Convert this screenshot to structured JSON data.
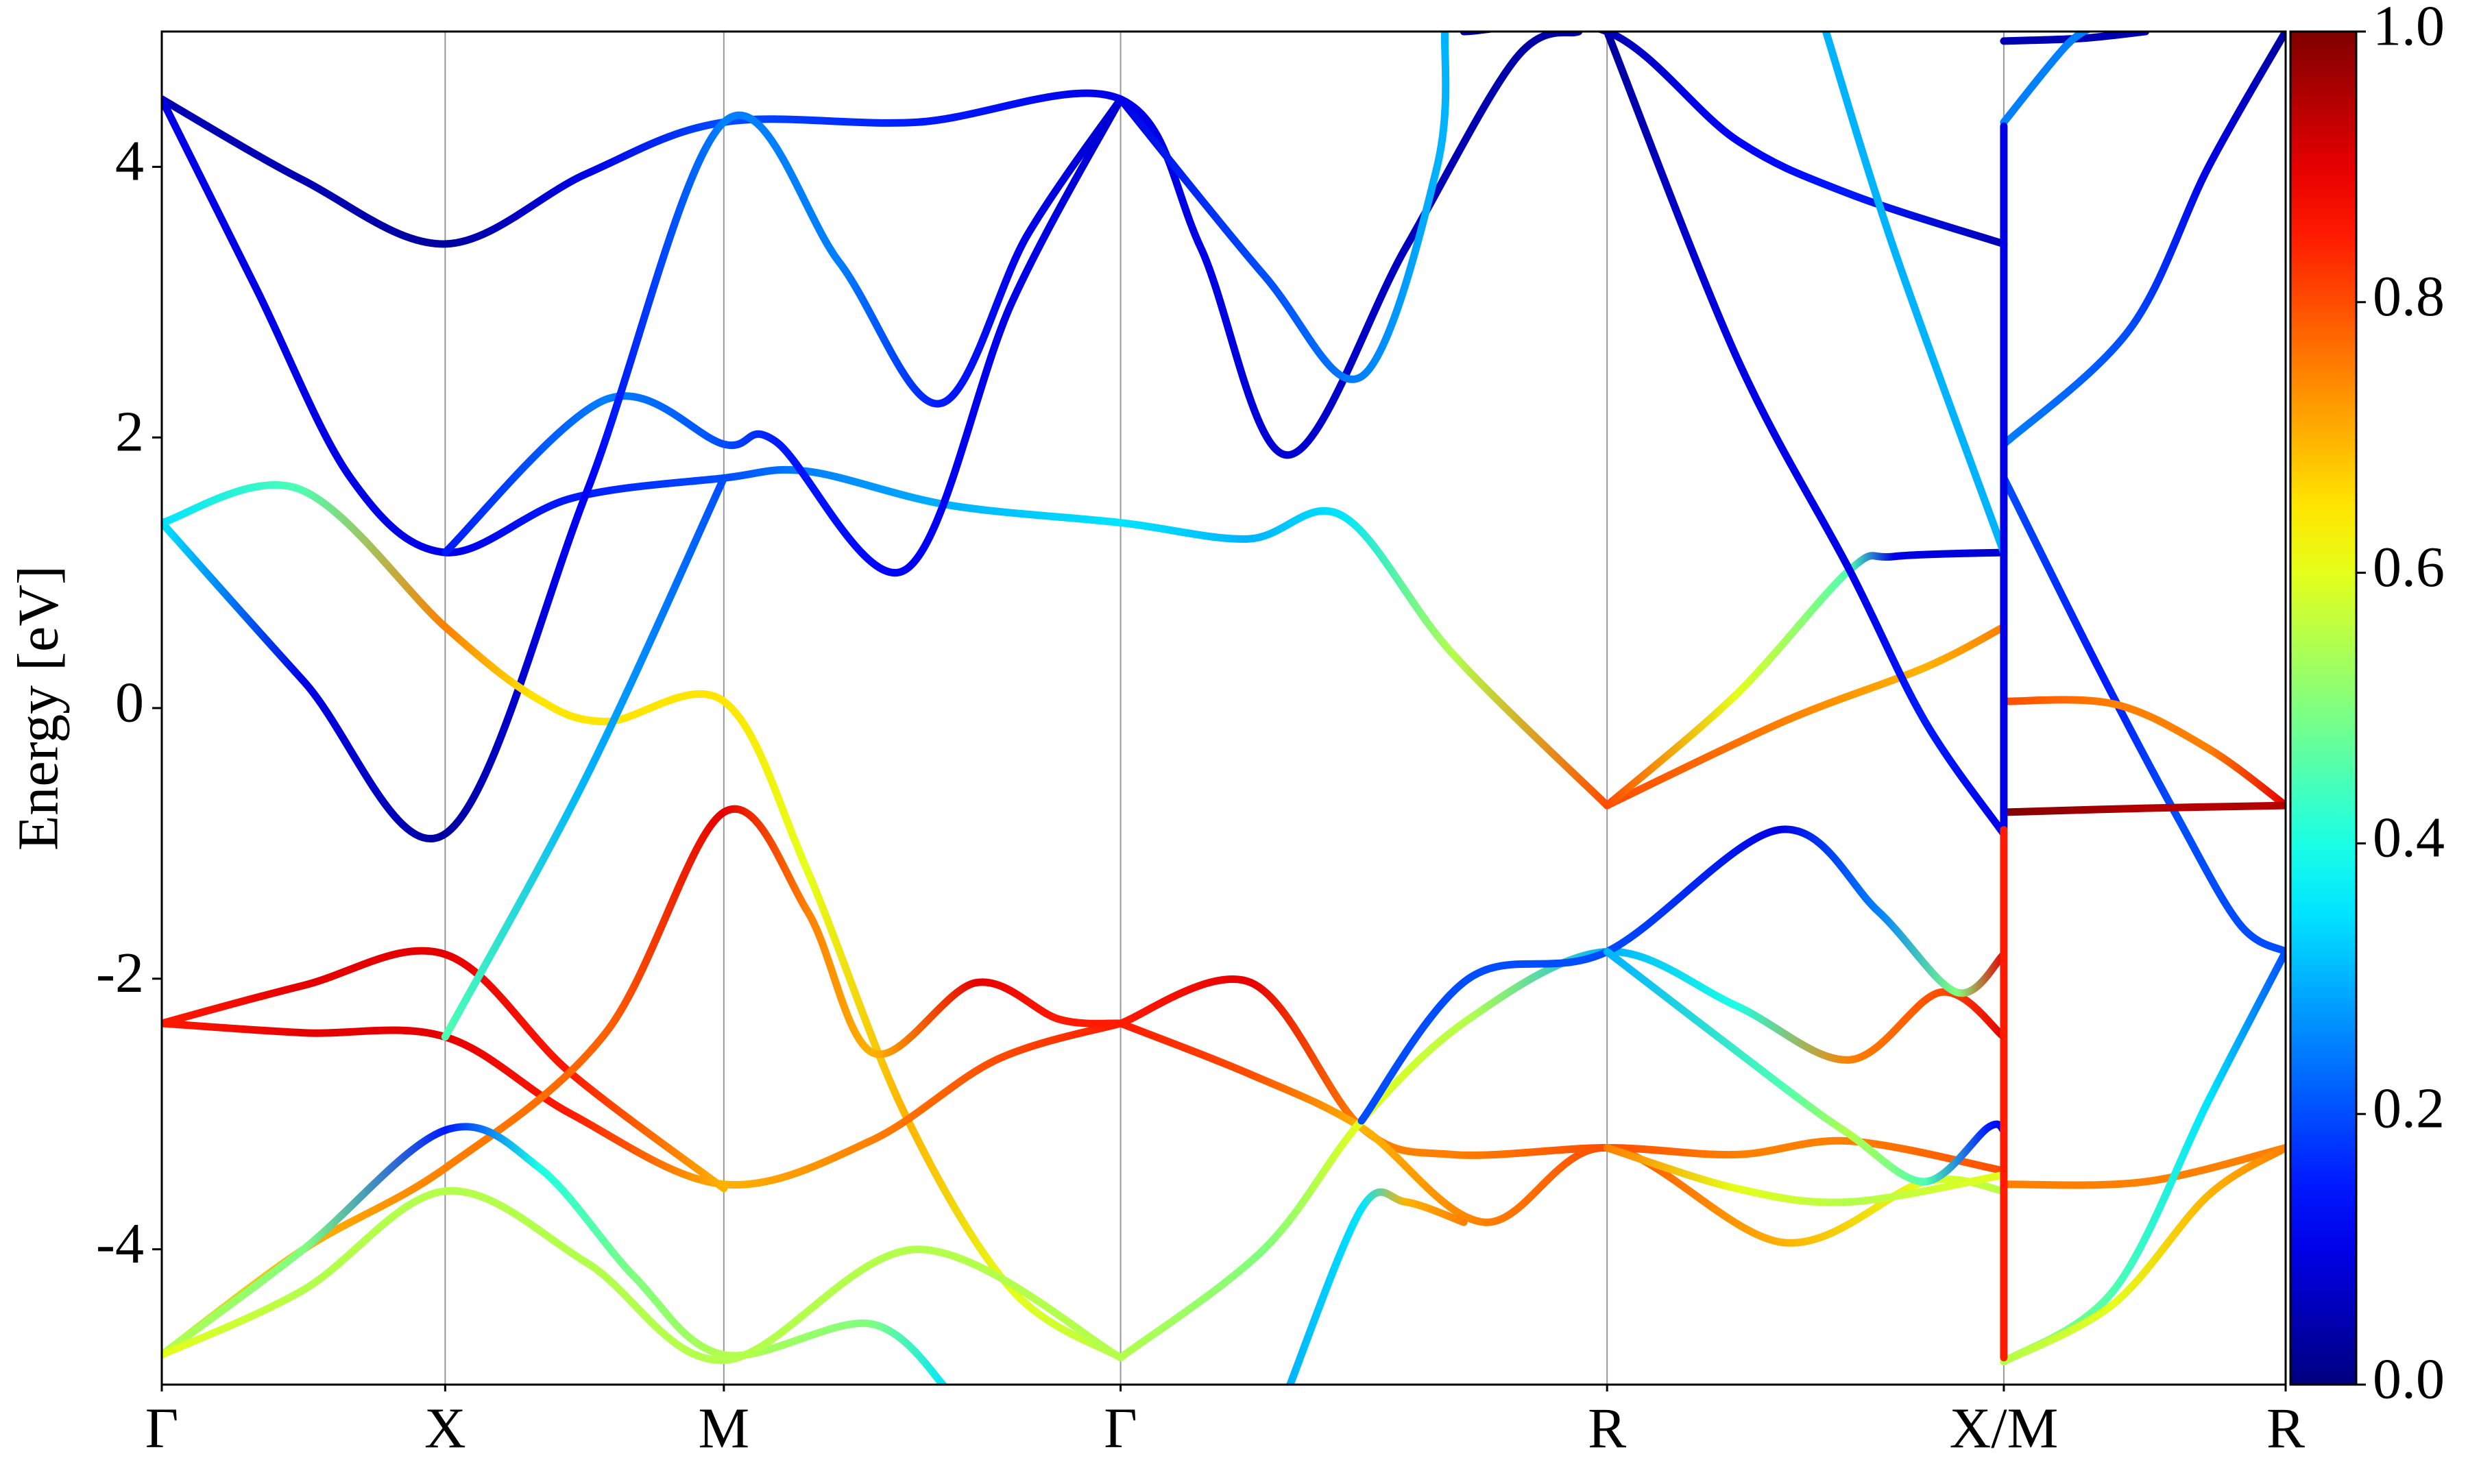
{
  "chart_data": {
    "type": "band_structure",
    "ylabel": "Energy [eV]",
    "xlim": [
      0,
      13.49
    ],
    "ylim": [
      -5,
      5
    ],
    "xticks": [
      {
        "value": 0,
        "label": "Γ"
      },
      {
        "value": 1.8,
        "label": "X"
      },
      {
        "value": 3.57,
        "label": "M"
      },
      {
        "value": 6.09,
        "label": "Γ"
      },
      {
        "value": 9.18,
        "label": "R"
      },
      {
        "value": 11.7,
        "label": "X/M"
      },
      {
        "value": 13.49,
        "label": "R"
      }
    ],
    "yticks": [
      -4,
      -2,
      0,
      2,
      4
    ],
    "grid": "x",
    "colormap": "jet",
    "clim": [
      0,
      1
    ],
    "cticks": [
      {
        "value": 0,
        "label": "0.0"
      },
      {
        "value": 0.2,
        "label": "0.2"
      },
      {
        "value": 0.4,
        "label": "0.4"
      },
      {
        "value": 0.6,
        "label": "0.6"
      },
      {
        "value": 0.8,
        "label": "0.8"
      },
      {
        "value": 1,
        "label": "1.0"
      }
    ],
    "series": [
      {
        "x": [
          0,
          0.9,
          1.8,
          2.7,
          3.57,
          4.8,
          6.09,
          6.6,
          7.15,
          7.9,
          8.6,
          9.0
        ],
        "values": [
          4.5,
          3.9,
          3.43,
          3.95,
          4.33,
          4.33,
          4.5,
          3.4,
          1.87,
          3.4,
          4.8,
          5.0
        ],
        "weights": [
          0.05,
          0.05,
          0.03,
          0.1,
          0.2,
          0.15,
          0.1,
          0.1,
          0.08,
          0.06,
          0.04,
          0.03
        ]
      },
      {
        "x": [
          0,
          0.6,
          1.2,
          1.8,
          2.6,
          3.57,
          4.1,
          5.0,
          6.09,
          6.9,
          7.5,
          8.2,
          9.18
        ],
        "values": [
          4.5,
          3.1,
          1.7,
          1.15,
          1.55,
          1.7,
          1.75,
          1.5,
          1.37,
          1.25,
          1.42,
          0.4,
          -0.72
        ],
        "weights": [
          0.1,
          0.1,
          0.1,
          0.1,
          0.15,
          0.2,
          0.25,
          0.3,
          0.35,
          0.3,
          0.35,
          0.55,
          0.8
        ]
      },
      {
        "x": [
          1.8,
          2.82,
          3.57,
          3.9,
          4.72,
          5.4,
          6.09
        ],
        "values": [
          1.15,
          2.28,
          1.95,
          1.97,
          1.02,
          3.0,
          4.5
        ],
        "weights": [
          0.15,
          0.25,
          0.2,
          0.15,
          0.12,
          0.1,
          0.08
        ]
      },
      {
        "x": [
          0,
          0.9,
          1.8,
          2.7,
          3.57,
          4.3,
          4.94,
          5.5,
          6.09
        ],
        "values": [
          1.37,
          0.2,
          -0.93,
          1.6,
          4.33,
          3.3,
          2.25,
          3.5,
          4.5
        ],
        "weights": [
          0.35,
          0.1,
          0.03,
          0.12,
          0.25,
          0.25,
          0.15,
          0.1,
          0.08
        ]
      },
      {
        "x": [
          0,
          0.87,
          1.8,
          2.37,
          2.82,
          3.57,
          4.1,
          4.72,
          5.4,
          6.09
        ],
        "values": [
          1.37,
          1.62,
          0.6,
          0.08,
          -0.1,
          0.05,
          -1.2,
          -3.0,
          -4.3,
          -4.8
        ],
        "weights": [
          0.35,
          0.45,
          0.75,
          0.65,
          0.65,
          0.65,
          0.6,
          0.7,
          0.6,
          0.55
        ]
      },
      {
        "x": [
          0,
          0.9,
          1.8,
          2.6,
          3.57
        ],
        "values": [
          -2.33,
          -2.05,
          -1.82,
          -2.7,
          -3.55
        ],
        "weights": [
          0.85,
          0.9,
          0.9,
          0.85,
          0.7
        ]
      },
      {
        "x": [
          0,
          0.9,
          1.8,
          2.6,
          3.57,
          4.5,
          5.3,
          6.09
        ],
        "values": [
          -2.33,
          -2.4,
          -2.43,
          -3.0,
          -3.52,
          -3.2,
          -2.6,
          -2.33
        ],
        "weights": [
          0.85,
          0.9,
          0.9,
          0.85,
          0.7,
          0.75,
          0.8,
          0.85
        ]
      },
      {
        "x": [
          0,
          0.9,
          1.8,
          2.82,
          3.57,
          4.1,
          4.52,
          5.17,
          5.7,
          6.09
        ],
        "values": [
          -4.78,
          -4.0,
          -3.4,
          -2.4,
          -0.77,
          -1.5,
          -2.55,
          -2.03,
          -2.3,
          -2.33
        ],
        "weights": [
          0.55,
          0.7,
          0.75,
          0.78,
          0.9,
          0.75,
          0.7,
          0.9,
          0.85,
          0.85
        ]
      },
      {
        "x": [
          1.8,
          2.7,
          3.57
        ],
        "values": [
          -2.43,
          -0.5,
          1.7
        ],
        "weights": [
          0.45,
          0.3,
          0.2
        ]
      },
      {
        "x": [
          0,
          0.9,
          1.8,
          2.4,
          3.0,
          3.57,
          4.5,
          5.0
        ],
        "values": [
          -4.78,
          -4.0,
          -3.12,
          -3.4,
          -4.2,
          -4.78,
          -4.55,
          -5.05
        ],
        "weights": [
          0.55,
          0.5,
          0.15,
          0.4,
          0.5,
          0.55,
          0.5,
          0.35
        ]
      },
      {
        "x": [
          0,
          0.9,
          1.8,
          2.7,
          3.57,
          4.8,
          6.09
        ],
        "values": [
          -4.78,
          -4.3,
          -3.57,
          -4.1,
          -4.82,
          -4.0,
          -4.8
        ],
        "weights": [
          0.6,
          0.55,
          0.55,
          0.55,
          0.55,
          0.55,
          0.55
        ]
      },
      {
        "x": [
          6.09,
          6.92,
          7.62,
          8.2,
          9.18,
          10.0,
          10.72,
          11.7
        ],
        "values": [
          -2.33,
          -2.03,
          -3.1,
          -3.3,
          -3.25,
          -3.3,
          -3.2,
          -3.42
        ],
        "weights": [
          0.85,
          0.9,
          0.75,
          0.75,
          0.8,
          0.75,
          0.75,
          0.8
        ]
      },
      {
        "x": [
          6.09,
          6.9,
          7.62,
          8.4,
          9.18,
          10.3,
          11.2,
          11.7
        ],
        "values": [
          -2.33,
          -2.7,
          -3.1,
          -3.8,
          -3.25,
          -3.95,
          -3.5,
          -3.57
        ],
        "weights": [
          0.85,
          0.8,
          0.7,
          0.75,
          0.8,
          0.7,
          0.6,
          0.55
        ]
      },
      {
        "x": [
          6.09,
          7.0,
          7.62,
          8.3,
          9.18,
          10.0,
          10.72,
          11.3,
          11.7
        ],
        "values": [
          -4.8,
          -4.0,
          -3.05,
          -2.3,
          -1.8,
          -2.2,
          -2.6,
          -2.1,
          -2.43
        ],
        "weights": [
          0.55,
          0.5,
          0.6,
          0.55,
          0.3,
          0.4,
          0.75,
          0.8,
          0.9
        ]
      },
      {
        "x": [
          7.15,
          7.62,
          7.9,
          8.27
        ],
        "values": [
          -5.05,
          -3.7,
          -3.65,
          -3.8
        ],
        "weights": [
          0.3,
          0.35,
          0.7,
          0.75
        ]
      },
      {
        "x": [
          7.62,
          8.3,
          9.18,
          10.27,
          10.9,
          11.4,
          11.7
        ],
        "values": [
          -3.05,
          -2.0,
          -1.8,
          -0.9,
          -1.5,
          -2.1,
          -1.82
        ],
        "weights": [
          0.2,
          0.2,
          0.2,
          0.1,
          0.25,
          0.5,
          0.9
        ]
      },
      {
        "x": [
          9.18,
          10.3,
          10.72,
          11.2,
          11.6,
          11.7
        ],
        "values": [
          -1.8,
          -2.8,
          -3.15,
          -3.5,
          -3.1,
          -3.12
        ],
        "weights": [
          0.3,
          0.45,
          0.55,
          0.45,
          0.15,
          0.1
        ]
      },
      {
        "x": [
          9.18,
          10.0,
          10.72,
          11.7
        ],
        "values": [
          -3.25,
          -3.55,
          -3.65,
          -3.45
        ],
        "weights": [
          0.75,
          0.6,
          0.55,
          0.6
        ]
      },
      {
        "x": [
          9.18,
          10.3,
          11.2,
          11.7
        ],
        "values": [
          -0.72,
          -0.1,
          0.3,
          0.6
        ],
        "weights": [
          0.8,
          0.75,
          0.7,
          0.75
        ]
      },
      {
        "x": [
          9.18,
          10.0,
          10.72,
          11.0,
          11.7
        ],
        "values": [
          -0.72,
          0.1,
          1.02,
          1.12,
          1.15
        ],
        "weights": [
          0.8,
          0.6,
          0.45,
          0.1,
          0.08
        ]
      },
      {
        "x": [
          9.18,
          10.0,
          10.72,
          11.2,
          11.7
        ],
        "values": [
          5.0,
          2.6,
          1.02,
          -0.1,
          -0.93
        ],
        "weights": [
          0.03,
          0.1,
          0.1,
          0.15,
          0.1
        ]
      },
      {
        "x": [
          8.27,
          9.18,
          10.0,
          10.72,
          11.7
        ],
        "values": [
          5.0,
          5.0,
          4.2,
          3.8,
          3.43
        ],
        "weights": [
          0.03,
          0.05,
          0.12,
          0.15,
          0.05
        ]
      },
      {
        "x": [
          6.09,
          7.0,
          7.62,
          8.1,
          8.15
        ],
        "values": [
          4.5,
          3.2,
          2.45,
          4.0,
          5.0
        ],
        "weights": [
          0.1,
          0.2,
          0.25,
          0.3,
          0.3
        ]
      },
      {
        "x": [
          10.57,
          11.0,
          11.7
        ],
        "values": [
          5.0,
          3.4,
          1.15
        ],
        "weights": [
          0.3,
          0.3,
          0.3
        ]
      },
      {
        "x": [
          11.7,
          12.2,
          12.6
        ],
        "values": [
          4.93,
          4.95,
          5.0
        ],
        "weights": [
          0.05,
          0.05,
          0.05
        ]
      },
      {
        "x": [
          11.7,
          12.1,
          12.3
        ],
        "values": [
          4.33,
          4.9,
          5.05
        ],
        "weights": [
          0.25,
          0.25,
          0.25
        ]
      },
      {
        "x": [
          11.7,
          12.5,
          13.0,
          13.49
        ],
        "values": [
          1.95,
          2.8,
          4.0,
          5.0
        ],
        "weights": [
          0.25,
          0.2,
          0.1,
          0.03
        ]
      },
      {
        "x": [
          11.7,
          12.3,
          12.8,
          13.2,
          13.49
        ],
        "values": [
          1.7,
          0.3,
          -0.8,
          -1.6,
          -1.8
        ],
        "weights": [
          0.2,
          0.15,
          0.2,
          0.2,
          0.2
        ]
      },
      {
        "x": [
          11.7,
          12.4,
          13.0,
          13.49
        ],
        "values": [
          0.05,
          0.03,
          -0.3,
          -0.72
        ],
        "weights": [
          0.8,
          0.75,
          0.75,
          0.9
        ]
      },
      {
        "x": [
          11.7,
          12.6,
          13.49
        ],
        "values": [
          -0.77,
          -0.74,
          -0.72
        ],
        "weights": [
          1.0,
          0.95,
          0.95
        ]
      },
      {
        "x": [
          11.7,
          12.6,
          13.49
        ],
        "values": [
          -3.52,
          -3.5,
          -3.25
        ],
        "weights": [
          0.75,
          0.75,
          0.75
        ]
      },
      {
        "x": [
          11.7,
          12.4,
          13.0,
          13.49
        ],
        "values": [
          -4.83,
          -4.3,
          -2.9,
          -1.8
        ],
        "weights": [
          0.55,
          0.45,
          0.35,
          0.2
        ]
      },
      {
        "x": [
          11.7,
          12.4,
          13.0,
          13.49
        ],
        "values": [
          -4.83,
          -4.4,
          -3.6,
          -3.25
        ],
        "weights": [
          0.55,
          0.6,
          0.7,
          0.75
        ]
      },
      {
        "x": [
          11.7,
          11.7
        ],
        "values": [
          4.3,
          -0.9
        ],
        "weights": [
          0.1,
          0.1
        ]
      },
      {
        "x": [
          11.7,
          11.7
        ],
        "values": [
          -0.9,
          -4.8
        ],
        "weights": [
          0.85,
          0.85
        ]
      }
    ]
  }
}
